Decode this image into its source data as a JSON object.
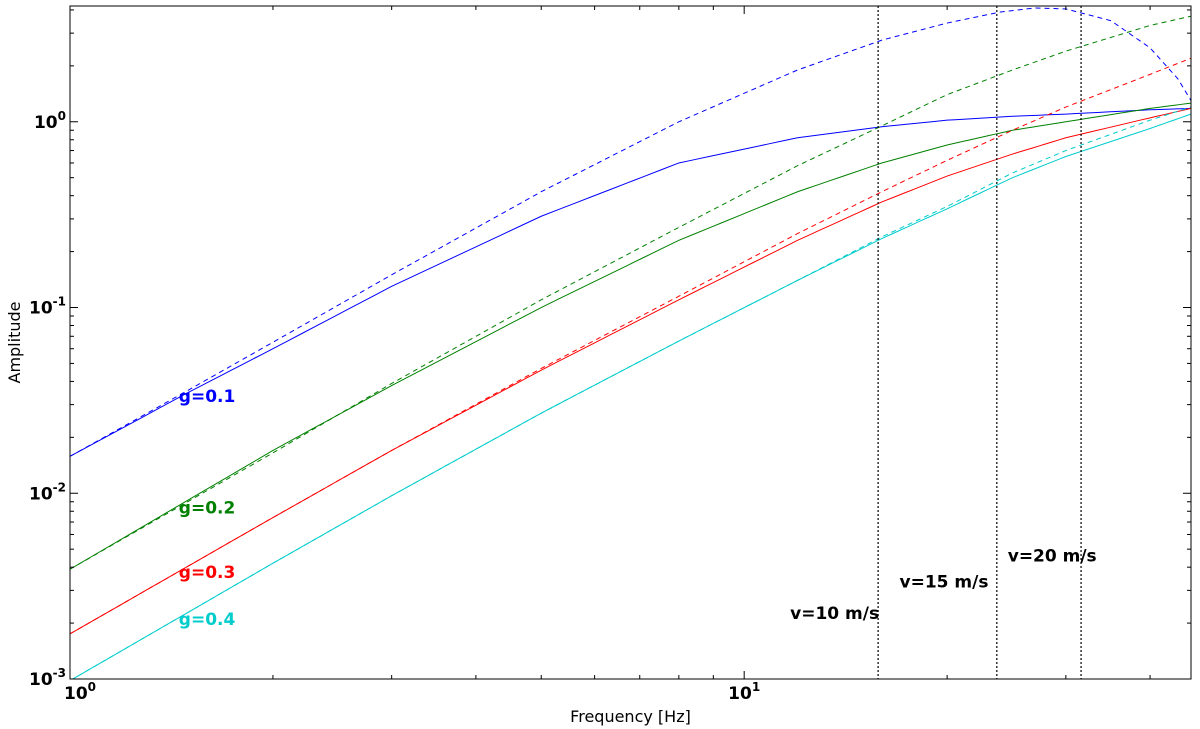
{
  "chart_data": {
    "type": "line",
    "xlabel": "Frequency [Hz]",
    "ylabel": "Amplitude",
    "xscale": "log",
    "yscale": "log",
    "xlim": [
      1,
      46
    ],
    "ylim": [
      0.001,
      4.2
    ],
    "grid": false,
    "x_ticks": [
      {
        "value": 1,
        "base": "10",
        "exp": "0"
      },
      {
        "value": 10,
        "base": "10",
        "exp": "1"
      }
    ],
    "y_ticks": [
      {
        "value": 0.001,
        "base": "10",
        "exp": "-3"
      },
      {
        "value": 0.01,
        "base": "10",
        "exp": "-2"
      },
      {
        "value": 0.1,
        "base": "10",
        "exp": "-1"
      },
      {
        "value": 1,
        "base": "10",
        "exp": "0"
      }
    ],
    "series": [
      {
        "name": "g=0.1",
        "color": "#0000ff",
        "label_at": [
          1.45,
          0.031
        ],
        "solid": {
          "x": [
            1,
            1.5,
            2,
            3,
            5,
            8,
            12,
            16,
            20,
            25,
            30,
            40,
            46
          ],
          "y": [
            0.0158,
            0.035,
            0.06,
            0.13,
            0.31,
            0.6,
            0.82,
            0.94,
            1.02,
            1.07,
            1.1,
            1.16,
            1.18
          ]
        },
        "dashed": {
          "x": [
            1,
            1.5,
            2,
            3,
            5,
            8,
            12,
            16,
            20,
            24,
            27,
            30,
            35,
            40,
            44,
            46
          ],
          "y": [
            0.0158,
            0.036,
            0.065,
            0.15,
            0.42,
            1.0,
            1.9,
            2.75,
            3.4,
            3.9,
            4.1,
            4.05,
            3.5,
            2.5,
            1.7,
            1.3
          ]
        }
      },
      {
        "name": "g=0.2",
        "color": "#008000",
        "label_at": [
          1.45,
          0.0078
        ],
        "solid": {
          "x": [
            1,
            2,
            3,
            5,
            8,
            12,
            16,
            20,
            25,
            30,
            40,
            46
          ],
          "y": [
            0.0039,
            0.017,
            0.038,
            0.1,
            0.23,
            0.42,
            0.6,
            0.75,
            0.9,
            1.0,
            1.18,
            1.26
          ]
        },
        "dashed": {
          "x": [
            1,
            2,
            3,
            5,
            8,
            12,
            16,
            20,
            25,
            30,
            40,
            46
          ],
          "y": [
            0.0039,
            0.0165,
            0.039,
            0.11,
            0.27,
            0.58,
            0.95,
            1.4,
            1.9,
            2.4,
            3.3,
            3.7
          ]
        }
      },
      {
        "name": "g=0.3",
        "color": "#ff0000",
        "label_at": [
          1.45,
          0.0035
        ],
        "solid": {
          "x": [
            1,
            2,
            3,
            5,
            8,
            12,
            16,
            20,
            25,
            30,
            40,
            46
          ],
          "y": [
            0.00175,
            0.0074,
            0.017,
            0.046,
            0.11,
            0.23,
            0.37,
            0.51,
            0.67,
            0.82,
            1.05,
            1.18
          ]
        },
        "dashed": {
          "x": [
            1,
            2,
            3,
            5,
            8,
            12,
            16,
            20,
            25,
            30,
            40,
            46
          ],
          "y": [
            0.00175,
            0.0074,
            0.017,
            0.047,
            0.115,
            0.25,
            0.42,
            0.62,
            0.9,
            1.2,
            1.8,
            2.2
          ]
        }
      },
      {
        "name": "g=0.4",
        "color": "#00cccc",
        "label_at": [
          1.45,
          0.00195
        ],
        "solid": {
          "x": [
            1,
            2,
            3,
            5,
            8,
            12,
            16,
            20,
            25,
            30,
            40,
            46
          ],
          "y": [
            0.00098,
            0.0042,
            0.0097,
            0.027,
            0.066,
            0.14,
            0.235,
            0.34,
            0.5,
            0.65,
            0.92,
            1.1
          ]
        },
        "dashed": {
          "x": [
            1,
            2,
            3,
            5,
            8,
            12,
            16,
            20,
            25,
            30,
            40,
            46
          ],
          "y": [
            0.00098,
            0.0042,
            0.0097,
            0.027,
            0.066,
            0.14,
            0.24,
            0.35,
            0.53,
            0.7,
            1.02,
            1.2
          ]
        }
      }
    ],
    "vlines": [
      {
        "x": 15.8,
        "label": "v=10 m/s",
        "label_at": [
          11.7,
          0.0021
        ]
      },
      {
        "x": 23.7,
        "label": "v=15 m/s",
        "label_at": [
          17.0,
          0.0031
        ]
      },
      {
        "x": 31.6,
        "label": "v=20 m/s",
        "label_at": [
          24.6,
          0.0043
        ]
      }
    ]
  }
}
